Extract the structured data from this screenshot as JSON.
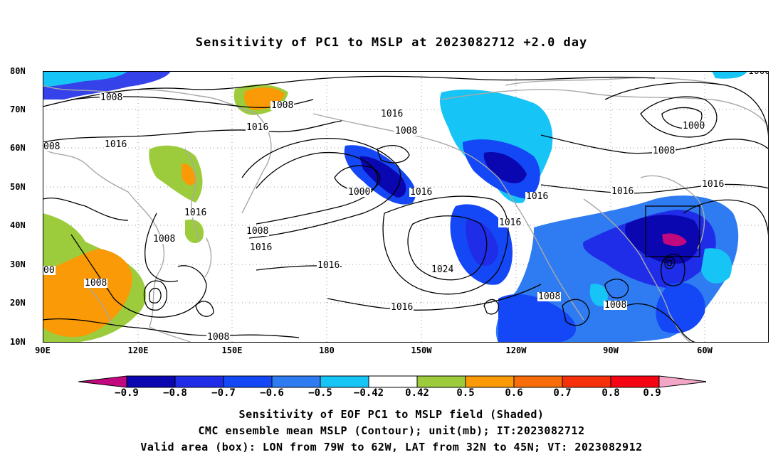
{
  "title": "Sensitivity of PC1 to MSLP at 2023082712 +2.0 day",
  "axes": {
    "lat_labels": [
      "80N",
      "70N",
      "60N",
      "50N",
      "40N",
      "30N",
      "20N",
      "10N"
    ],
    "lon_labels": [
      "90E",
      "120E",
      "150E",
      "180",
      "150W",
      "120W",
      "90W",
      "60W"
    ]
  },
  "contour_labels": [
    "1008",
    "1008",
    "1016",
    "1016",
    "1008",
    "008",
    "1016",
    "1000",
    "1016",
    "1016",
    "1016",
    "1016",
    "1008",
    "1016",
    "1008",
    "1016",
    "1000",
    "1024",
    "1008",
    "1016",
    "1008",
    "1016",
    "1008",
    "1008",
    "1000",
    "1016",
    "1008",
    "1016",
    "1016",
    "1008",
    "00"
  ],
  "colorbar": {
    "labels": [
      "−0.9",
      "−0.8",
      "−0.7",
      "−0.6",
      "−0.5",
      "−0.42",
      "0.42",
      "0.5",
      "0.6",
      "0.7",
      "0.8",
      "0.9"
    ],
    "colors": [
      "#c2087f",
      "#0a06b0",
      "#1f2de8",
      "#1447f5",
      "#2f7cf2",
      "#17c4f6",
      "#ffffff",
      "#9ccc3c",
      "#fa9a06",
      "#f86d0a",
      "#f5300a",
      "#f50412",
      "#f4a6c6"
    ]
  },
  "captions": [
    "Sensitivity of EOF PC1 to MSLP field (Shaded)",
    "CMC ensemble mean MSLP (Contour); unit(mb); IT:2023082712",
    "Valid area (box): LON from 79W to 62W, LAT from 32N to 45N; VT: 2023082912"
  ]
}
